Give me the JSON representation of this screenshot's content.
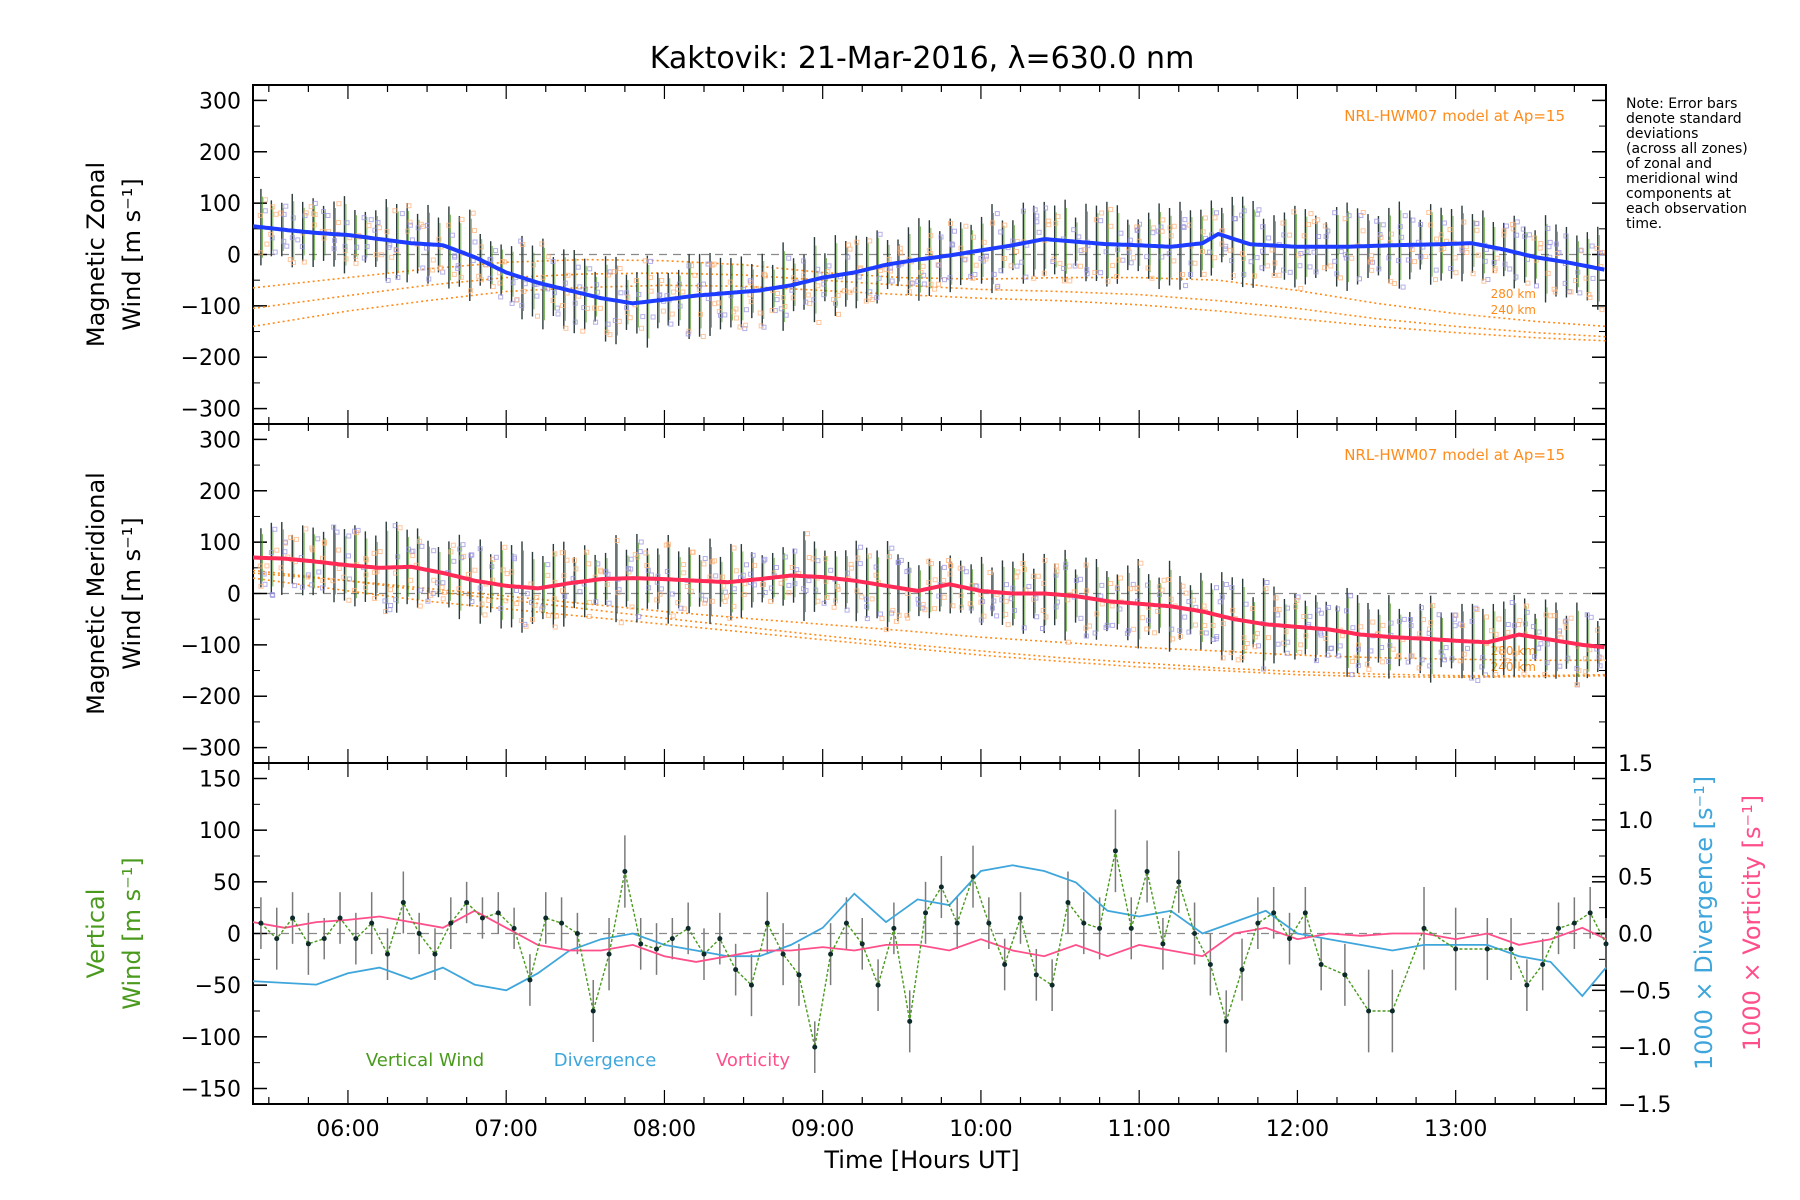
{
  "title": "Kaktovik: 21-Mar-2016, λ=630.0 nm",
  "note": [
    "Note: Error bars",
    "denote standard",
    "deviations",
    "(across all zones)",
    "of zonal and",
    "meridional wind",
    "components at",
    "each observation",
    "time."
  ],
  "colors": {
    "zonal_line": "#1e3cff",
    "meridional_line": "#ff2a55",
    "vertical": "#4a9a1e",
    "divergence": "#3fa6dc",
    "vorticity": "#ff4f8b",
    "model": "#ff8c1a",
    "errorbar": "#333333",
    "zone_purple": "#9a94e0",
    "zone_orange": "#ffb27a",
    "dashed_zero": "#888888"
  },
  "chart_data": [
    {
      "type": "line",
      "panel": "zonal",
      "ylabel": [
        "Magnetic Zonal",
        "Wind [m s⁻¹]"
      ],
      "ylim": [
        -330,
        330
      ],
      "yticks": [
        300,
        200,
        100,
        0,
        -100,
        -200,
        -300
      ],
      "xlim": [
        5.4,
        13.95
      ],
      "model_label": "NRL-HWM07 model at Ap=15",
      "model_km_labels": [
        "280 km",
        "240 km"
      ],
      "series": [
        {
          "role": "mean-wind",
          "x": [
            5.4,
            5.6,
            5.8,
            6.0,
            6.2,
            6.4,
            6.6,
            6.8,
            7.0,
            7.2,
            7.4,
            7.6,
            7.8,
            8.0,
            8.2,
            8.4,
            8.6,
            8.8,
            9.0,
            9.2,
            9.4,
            9.6,
            9.8,
            10.0,
            10.2,
            10.4,
            10.6,
            10.8,
            11.0,
            11.2,
            11.4,
            11.5,
            11.7,
            12.0,
            12.3,
            12.6,
            12.9,
            13.1,
            13.3,
            13.5,
            13.7,
            13.95
          ],
          "values": [
            55,
            48,
            42,
            38,
            30,
            22,
            18,
            -5,
            -35,
            -55,
            -70,
            -85,
            -95,
            -88,
            -80,
            -75,
            -70,
            -60,
            -45,
            -35,
            -20,
            -10,
            -2,
            8,
            18,
            30,
            25,
            20,
            18,
            15,
            22,
            40,
            20,
            15,
            15,
            18,
            20,
            22,
            10,
            -5,
            -15,
            -30
          ]
        },
        {
          "role": "model-280km",
          "x": [
            5.4,
            6.0,
            6.5,
            7.0,
            7.5,
            8.0,
            8.5,
            9.0,
            9.5,
            10.0,
            10.5,
            11.0,
            11.5,
            12.0,
            12.5,
            13.0,
            13.5,
            13.95
          ],
          "values": [
            -65,
            -45,
            -28,
            -15,
            -10,
            -12,
            -20,
            -35,
            -45,
            -48,
            -45,
            -45,
            -50,
            -70,
            -95,
            -115,
            -130,
            -140
          ]
        },
        {
          "role": "model-240km",
          "x": [
            5.4,
            6.0,
            6.5,
            7.0,
            7.5,
            8.0,
            8.5,
            9.0,
            9.5,
            10.0,
            10.5,
            11.0,
            11.5,
            12.0,
            12.5,
            13.0,
            13.5,
            13.95
          ],
          "values": [
            -105,
            -80,
            -60,
            -45,
            -38,
            -36,
            -40,
            -50,
            -60,
            -68,
            -72,
            -78,
            -90,
            -105,
            -125,
            -140,
            -152,
            -160
          ]
        },
        {
          "role": "model-200km",
          "x": [
            5.4,
            6.0,
            6.5,
            7.0,
            7.5,
            8.0,
            8.5,
            9.0,
            9.5,
            10.0,
            10.5,
            11.0,
            11.5,
            12.0,
            12.5,
            13.0,
            13.5,
            13.95
          ],
          "values": [
            -140,
            -110,
            -90,
            -72,
            -64,
            -60,
            -62,
            -70,
            -78,
            -85,
            -90,
            -98,
            -110,
            -125,
            -140,
            -152,
            -162,
            -168
          ]
        }
      ]
    },
    {
      "type": "line",
      "panel": "meridional",
      "ylabel": [
        "Magnetic Meridional",
        "Wind [m s⁻¹]"
      ],
      "ylim": [
        -330,
        330
      ],
      "yticks": [
        300,
        200,
        100,
        0,
        -100,
        -200,
        -300
      ],
      "xlim": [
        5.4,
        13.95
      ],
      "model_label": "NRL-HWM07 model at Ap=15",
      "model_km_labels": [
        "280 km",
        "240 km"
      ],
      "series": [
        {
          "role": "mean-wind",
          "x": [
            5.4,
            5.6,
            5.8,
            6.0,
            6.2,
            6.4,
            6.6,
            6.8,
            7.0,
            7.2,
            7.4,
            7.6,
            7.8,
            8.0,
            8.2,
            8.4,
            8.6,
            8.8,
            9.0,
            9.2,
            9.4,
            9.6,
            9.8,
            10.0,
            10.2,
            10.4,
            10.6,
            10.8,
            11.0,
            11.2,
            11.4,
            11.6,
            11.8,
            12.0,
            12.2,
            12.4,
            12.6,
            12.8,
            13.0,
            13.2,
            13.4,
            13.6,
            13.8,
            13.95
          ],
          "values": [
            70,
            68,
            62,
            55,
            50,
            52,
            40,
            25,
            15,
            10,
            20,
            28,
            30,
            28,
            25,
            22,
            28,
            35,
            32,
            25,
            15,
            5,
            18,
            5,
            0,
            0,
            -5,
            -15,
            -20,
            -25,
            -35,
            -50,
            -60,
            -65,
            -70,
            -80,
            -85,
            -88,
            -92,
            -95,
            -80,
            -90,
            -100,
            -105
          ]
        },
        {
          "role": "model-280km",
          "x": [
            5.4,
            6.0,
            6.5,
            7.0,
            7.5,
            8.0,
            8.5,
            9.0,
            9.5,
            10.0,
            10.5,
            11.0,
            11.5,
            12.0,
            12.5,
            13.0,
            13.5,
            13.95
          ],
          "values": [
            40,
            25,
            10,
            -5,
            -20,
            -35,
            -48,
            -60,
            -72,
            -85,
            -95,
            -105,
            -112,
            -120,
            -125,
            -128,
            -130,
            -130
          ]
        },
        {
          "role": "model-240km",
          "x": [
            5.4,
            6.0,
            6.5,
            7.0,
            7.5,
            8.0,
            8.5,
            9.0,
            9.5,
            10.0,
            10.5,
            11.0,
            11.5,
            12.0,
            12.5,
            13.0,
            13.5,
            13.95
          ],
          "values": [
            45,
            25,
            5,
            -12,
            -30,
            -48,
            -65,
            -82,
            -98,
            -112,
            -125,
            -135,
            -145,
            -152,
            -157,
            -160,
            -160,
            -158
          ]
        },
        {
          "role": "model-200km",
          "x": [
            5.4,
            6.0,
            6.5,
            7.0,
            7.5,
            8.0,
            8.5,
            9.0,
            9.5,
            10.0,
            10.5,
            11.0,
            11.5,
            12.0,
            12.5,
            13.0,
            13.5,
            13.95
          ],
          "values": [
            30,
            5,
            -15,
            -30,
            -45,
            -60,
            -75,
            -90,
            -105,
            -120,
            -132,
            -143,
            -150,
            -158,
            -162,
            -163,
            -162,
            -160
          ]
        }
      ]
    },
    {
      "type": "line",
      "panel": "vertical",
      "ylabel": [
        "Vertical",
        "Wind [m s⁻¹]"
      ],
      "right_labels": [
        "1000 × Divergence [s⁻¹]",
        "1000 × Vorticity [s⁻¹]"
      ],
      "ylim": [
        -165,
        165
      ],
      "yticks": [
        150,
        100,
        50,
        0,
        -50,
        -100,
        -150
      ],
      "y2lim": [
        -1.5,
        1.5
      ],
      "y2ticks": [
        1.5,
        1.0,
        0.5,
        0.0,
        -0.5,
        -1.0,
        -1.5
      ],
      "xlim": [
        5.4,
        13.95
      ],
      "xticks": [
        "06:00",
        "07:00",
        "08:00",
        "09:00",
        "10:00",
        "11:00",
        "12:00",
        "13:00"
      ],
      "xtick_values": [
        6,
        7,
        8,
        9,
        10,
        11,
        12,
        13
      ],
      "xlabel": "Time [Hours UT]",
      "legend": [
        "Vertical Wind",
        "Divergence",
        "Vorticity"
      ],
      "series": [
        {
          "name": "Vertical Wind",
          "x": [
            5.45,
            5.55,
            5.65,
            5.75,
            5.85,
            5.95,
            6.05,
            6.15,
            6.25,
            6.35,
            6.45,
            6.55,
            6.65,
            6.75,
            6.85,
            6.95,
            7.05,
            7.15,
            7.25,
            7.35,
            7.45,
            7.55,
            7.65,
            7.75,
            7.85,
            7.95,
            8.05,
            8.15,
            8.25,
            8.35,
            8.45,
            8.55,
            8.65,
            8.75,
            8.85,
            8.95,
            9.05,
            9.15,
            9.25,
            9.35,
            9.45,
            9.55,
            9.65,
            9.75,
            9.85,
            9.95,
            10.05,
            10.15,
            10.25,
            10.35,
            10.45,
            10.55,
            10.65,
            10.75,
            10.85,
            10.95,
            11.05,
            11.15,
            11.25,
            11.35,
            11.45,
            11.55,
            11.65,
            11.75,
            11.85,
            11.95,
            12.05,
            12.15,
            12.3,
            12.45,
            12.6,
            12.8,
            13.0,
            13.2,
            13.35,
            13.45,
            13.55,
            13.65,
            13.75,
            13.85,
            13.95
          ],
          "values": [
            10,
            -5,
            15,
            -10,
            -5,
            15,
            -5,
            10,
            -20,
            30,
            0,
            -20,
            10,
            30,
            15,
            20,
            5,
            -45,
            15,
            10,
            0,
            -75,
            -20,
            60,
            -10,
            -15,
            -5,
            5,
            -20,
            -5,
            -35,
            -50,
            10,
            -20,
            -40,
            -110,
            -20,
            10,
            -10,
            -50,
            5,
            -85,
            20,
            45,
            10,
            55,
            10,
            -30,
            15,
            -40,
            -50,
            30,
            10,
            5,
            80,
            5,
            60,
            -10,
            50,
            0,
            -30,
            -85,
            -35,
            10,
            20,
            -5,
            20,
            -30,
            -40,
            -75,
            -75,
            5,
            -15,
            -15,
            -15,
            -50,
            -30,
            5,
            10,
            20,
            -10
          ],
          "err": [
            25,
            30,
            25,
            30,
            20,
            25,
            25,
            30,
            25,
            30,
            20,
            25,
            25,
            20,
            20,
            20,
            20,
            25,
            25,
            25,
            20,
            30,
            35,
            35,
            25,
            25,
            20,
            25,
            25,
            25,
            25,
            30,
            30,
            30,
            30,
            25,
            30,
            25,
            25,
            25,
            25,
            30,
            30,
            30,
            25,
            30,
            25,
            25,
            25,
            25,
            25,
            30,
            30,
            30,
            40,
            30,
            30,
            25,
            30,
            30,
            30,
            30,
            30,
            25,
            25,
            25,
            25,
            25,
            30,
            40,
            40,
            40,
            40,
            30,
            30,
            25,
            25,
            25,
            25,
            25,
            25
          ]
        },
        {
          "name": "Divergence",
          "x": [
            5.4,
            5.8,
            6.0,
            6.2,
            6.4,
            6.6,
            6.8,
            7.0,
            7.2,
            7.4,
            7.6,
            7.8,
            8.0,
            8.2,
            8.4,
            8.6,
            8.8,
            9.0,
            9.2,
            9.4,
            9.6,
            9.8,
            10.0,
            10.2,
            10.4,
            10.6,
            10.8,
            11.0,
            11.2,
            11.4,
            11.6,
            11.8,
            12.0,
            12.2,
            12.4,
            12.6,
            12.8,
            13.0,
            13.2,
            13.4,
            13.6,
            13.8,
            13.95
          ],
          "values": [
            -0.42,
            -0.45,
            -0.35,
            -0.3,
            -0.4,
            -0.3,
            -0.45,
            -0.5,
            -0.35,
            -0.15,
            -0.05,
            0.0,
            -0.1,
            -0.15,
            -0.2,
            -0.2,
            -0.1,
            0.05,
            0.35,
            0.1,
            0.3,
            0.25,
            0.55,
            0.6,
            0.55,
            0.45,
            0.2,
            0.15,
            0.2,
            0.0,
            0.1,
            0.2,
            0.0,
            -0.05,
            -0.1,
            -0.15,
            -0.1,
            -0.1,
            -0.1,
            -0.2,
            -0.25,
            -0.55,
            -0.3
          ]
        },
        {
          "name": "Vorticity",
          "x": [
            5.4,
            5.6,
            5.8,
            6.0,
            6.2,
            6.4,
            6.6,
            6.8,
            7.0,
            7.2,
            7.4,
            7.6,
            7.8,
            8.0,
            8.2,
            8.4,
            8.6,
            8.8,
            9.0,
            9.2,
            9.4,
            9.6,
            9.8,
            10.0,
            10.2,
            10.4,
            10.6,
            10.8,
            11.0,
            11.2,
            11.4,
            11.6,
            11.8,
            12.0,
            12.2,
            12.4,
            12.6,
            12.8,
            13.0,
            13.2,
            13.4,
            13.6,
            13.8,
            13.95
          ],
          "values": [
            0.1,
            0.05,
            0.1,
            0.12,
            0.15,
            0.1,
            0.05,
            0.2,
            0.05,
            -0.1,
            -0.15,
            -0.15,
            -0.1,
            -0.2,
            -0.25,
            -0.2,
            -0.15,
            -0.15,
            -0.12,
            -0.15,
            -0.1,
            -0.1,
            -0.15,
            -0.05,
            -0.15,
            -0.2,
            -0.1,
            -0.2,
            -0.1,
            -0.15,
            -0.2,
            0.0,
            0.05,
            -0.05,
            0.0,
            -0.02,
            0.0,
            0.0,
            -0.05,
            0.0,
            -0.1,
            -0.05,
            0.05,
            -0.05
          ]
        }
      ]
    }
  ]
}
